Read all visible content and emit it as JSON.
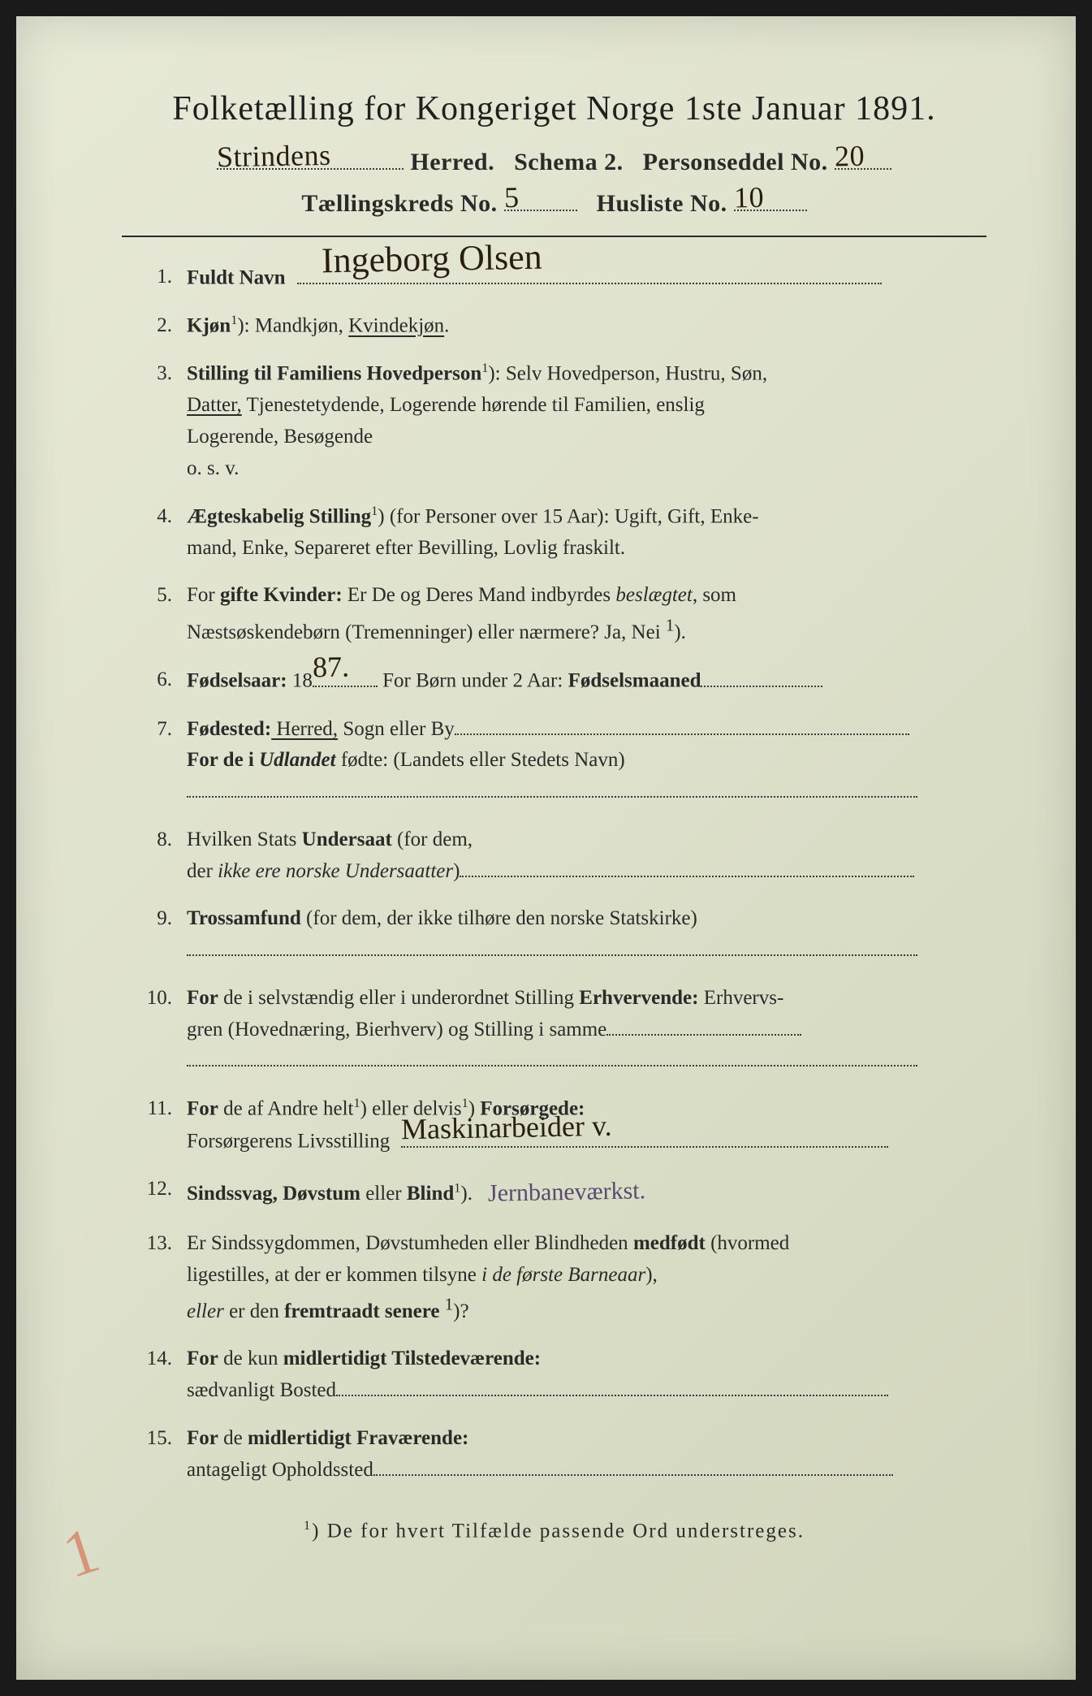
{
  "colors": {
    "paper_bg_start": "#e8ead8",
    "paper_bg_mid": "#dde0ca",
    "paper_bg_end": "#d2d6bc",
    "ink": "#2a2a28",
    "handwriting": "#2a1e14",
    "handwriting_purple": "#5a4a70",
    "corner_mark": "rgba(210,90,60,0.55)",
    "dotted": "#3a3a36"
  },
  "typography": {
    "title_size_pt": 42,
    "subtitle_size_pt": 30,
    "body_size_pt": 25,
    "hw_size_pt": 36,
    "font_family_print": "Georgia, 'Times New Roman', serif",
    "font_family_hand": "'Brush Script MT', 'Segoe Script', cursive"
  },
  "header": {
    "title": "Folketælling for Kongeriget Norge 1ste Januar 1891.",
    "herred_hw": "Strindens",
    "herred_label": "Herred.",
    "schema": "Schema 2.",
    "personseddel_label": "Personseddel No.",
    "personseddel_hw": "20",
    "kreds_label": "Tællingskreds No.",
    "kreds_hw": "5",
    "husliste_label": "Husliste No.",
    "husliste_hw": "10"
  },
  "entries": [
    {
      "n": "1.",
      "lead": "Fuldt Navn",
      "tail_hw": "Ingeborg Olsen"
    },
    {
      "n": "2.",
      "lead": "Kjøn",
      "sup": "1",
      "text_a": "): Mandkjøn, ",
      "underlined": "Kvindekjøn",
      "text_b": "."
    },
    {
      "n": "3.",
      "lead": "Stilling til Familiens Hovedperson",
      "sup": "1",
      "lines": [
        "): Selv Hovedperson, Hustru, Søn,",
        {
          "underlined": "Datter,",
          "rest": " Tjenestetydende, Logerende hørende til Familien, enslig"
        },
        "Logerende, Besøgende",
        "o. s. v."
      ]
    },
    {
      "n": "4.",
      "lead": "Ægteskabelig Stilling",
      "sup": "1",
      "lines": [
        ") (for Personer over 15 Aar): Ugift, Gift, Enke-",
        "mand, Enke, Separeret efter Bevilling, Lovlig fraskilt."
      ]
    },
    {
      "n": "5.",
      "plain": "For ",
      "lead": "gifte Kvinder:",
      "lines": [
        " Er De og Deres Mand indbyrdes <i>beslægtet</i>, som",
        "Næstsøskendebørn (Tremenninger) eller nærmere?  Ja, Nei <sup>1</sup>)."
      ]
    },
    {
      "n": "6.",
      "lead": "Fødselsaar:",
      "year_prefix": " 18",
      "year_hw": "87.",
      "rest": "  For Børn under 2 Aar: ",
      "lead2": "Fødselsmaaned"
    },
    {
      "n": "7.",
      "lead": "Fødested:",
      "underlined": " Herred,",
      "rest": " Sogn eller By",
      "line2_a": "For de i ",
      "line2_i": "Udlandet",
      "line2_b": " fødte: (Landets eller Stedets Navn)"
    },
    {
      "n": "8.",
      "text_a": "Hvilken Stats ",
      "lead": "Undersaat",
      "text_b": " (for dem,",
      "line2_a": "der ",
      "line2_i": "ikke ere norske Undersaatter",
      "line2_b": ")"
    },
    {
      "n": "9.",
      "lead": "Trossamfund",
      "text": "  (for dem, der ikke tilhøre den norske Statskirke)"
    },
    {
      "n": "10.",
      "lead": "For",
      "text_a": " de i selvstændig eller i underordnet Stilling ",
      "lead2": "Erhvervende:",
      "lines": [
        " Erhvervs-",
        "gren (Hovednæring, Bierhverv) og Stilling i samme"
      ]
    },
    {
      "n": "11.",
      "lead": "For",
      "text_a": " de af Andre helt",
      "sup1": "1",
      "text_b": ") eller delvis",
      "sup2": "1",
      "text_c": ") ",
      "lead2": "Forsørgede:",
      "line2_label": "Forsørgerens Livsstilling",
      "line2_hw": "Maskinarbeider   v."
    },
    {
      "n": "12.",
      "lead": "Sindssvag, Døvstum",
      "text_a": " eller ",
      "lead2": "Blind",
      "sup": "1",
      "text_b": ").",
      "tail_hw": "Jernbaneværkst."
    },
    {
      "n": "13.",
      "text_a": "Er Sindssygdommen, Døvstumheden eller Blindheden ",
      "lead": "medfødt",
      "lines": [
        " (hvormed",
        "ligestilles, at der er kommen tilsyne <i>i de første Barneaar</i>),",
        "<i>eller</i> er den <b>fremtraadt senere</b> <sup>1</sup>)?"
      ]
    },
    {
      "n": "14.",
      "lead": "For",
      "text_a": " de kun ",
      "lead2": "midlertidigt Tilstedeværende:",
      "line2": "sædvanligt Bosted"
    },
    {
      "n": "15.",
      "lead": "For",
      "text_a": " de ",
      "lead2": "midlertidigt Fraværende:",
      "line2": "antageligt Opholdssted"
    }
  ],
  "footnote": {
    "sup": "1",
    "text": ") De for hvert Tilfælde passende Ord understreges."
  },
  "corner_mark": "1"
}
